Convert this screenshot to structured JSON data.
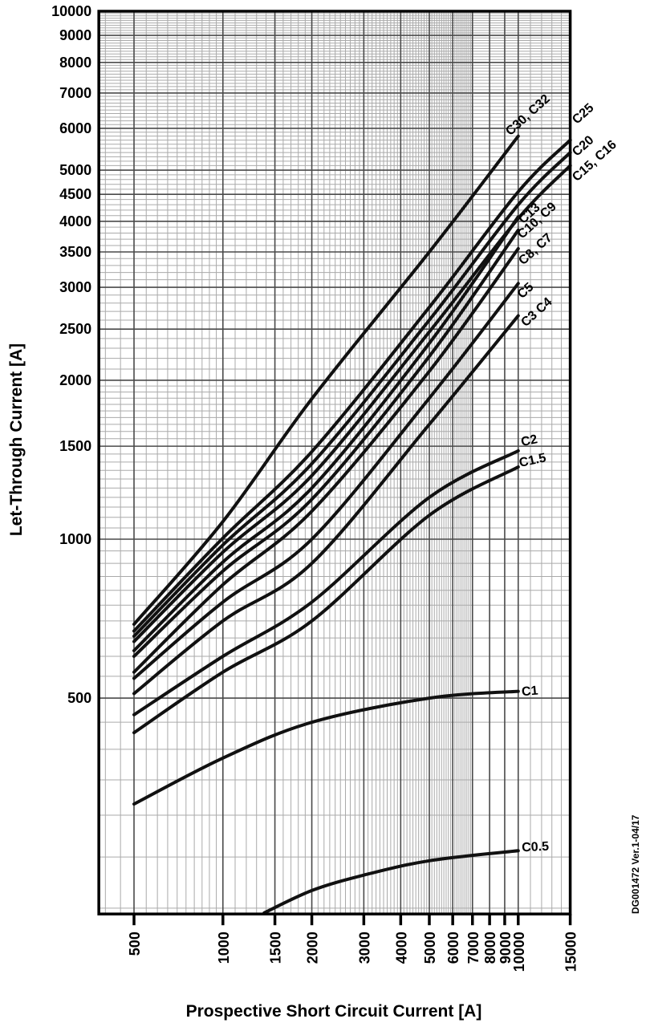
{
  "figure_id": "DG001472  Ver.1-04/17",
  "chart_data": {
    "type": "line",
    "title": "",
    "xlabel": "Prospective Short Circuit Current [A]",
    "ylabel": "Let-Through Current [A]",
    "x_scale": "log",
    "y_scale": "log",
    "xlim": [
      380,
      15000
    ],
    "ylim": [
      195,
      10000
    ],
    "grid": "on (log major + minor, both axes)",
    "legend_position": "labels at right end of each curve",
    "colors": {
      "curve": "#111111",
      "major_grid": "#4a4a4a",
      "minor_grid": "#aaaaaa",
      "border": "#000000",
      "background": "#ffffff"
    },
    "x_ticks": [
      "500",
      "1000",
      "1500",
      "2000",
      "3000",
      "4000",
      "5000",
      "6000",
      "7000",
      "8000",
      "9000",
      "10000",
      "15000"
    ],
    "y_ticks": [
      "10000",
      "9000",
      "8000",
      "7000",
      "6000",
      "5000",
      "4500",
      "4000",
      "3500",
      "3000",
      "2500",
      "2000",
      "1500",
      "1000",
      "500"
    ],
    "series": [
      {
        "name": "C30, C32",
        "points": [
          [
            500,
            690
          ],
          [
            1000,
            1080
          ],
          [
            2000,
            1845
          ],
          [
            5000,
            3500
          ],
          [
            10000,
            5800
          ]
        ],
        "label_anchor": [
          9400,
          5800
        ],
        "label_rotation": -42
      },
      {
        "name": "C25",
        "points": [
          [
            500,
            670
          ],
          [
            1000,
            1005
          ],
          [
            2000,
            1465
          ],
          [
            5000,
            2750
          ],
          [
            10000,
            4550
          ],
          [
            15000,
            5700
          ]
        ],
        "label_anchor": [
          15800,
          6100
        ],
        "label_rotation": -42
      },
      {
        "name": "C20",
        "points": [
          [
            500,
            655
          ],
          [
            1000,
            975
          ],
          [
            2000,
            1390
          ],
          [
            5000,
            2600
          ],
          [
            10000,
            4300
          ],
          [
            15000,
            5400
          ]
        ],
        "label_anchor": [
          15800,
          5300
        ],
        "label_rotation": -42
      },
      {
        "name": "C15, C16",
        "points": [
          [
            500,
            640
          ],
          [
            1000,
            945
          ],
          [
            2000,
            1320
          ],
          [
            5000,
            2470
          ],
          [
            10000,
            4050
          ],
          [
            15000,
            5100
          ]
        ],
        "label_anchor": [
          15800,
          4750
        ],
        "label_rotation": -42
      },
      {
        "name": "C13",
        "points": [
          [
            500,
            615
          ],
          [
            1000,
            905
          ],
          [
            2000,
            1250
          ],
          [
            5000,
            2350
          ],
          [
            10000,
            4080
          ]
        ],
        "label_anchor": [
          10400,
          3950
        ],
        "label_rotation": -42
      },
      {
        "name": "C10, C9",
        "points": [
          [
            500,
            600
          ],
          [
            1000,
            870
          ],
          [
            2000,
            1190
          ],
          [
            5000,
            2220
          ],
          [
            10000,
            3850
          ]
        ],
        "label_anchor": [
          10300,
          3700
        ],
        "label_rotation": -42
      },
      {
        "name": "C8, C7",
        "points": [
          [
            500,
            560
          ],
          [
            1000,
            820
          ],
          [
            2000,
            1130
          ],
          [
            5000,
            2080
          ],
          [
            10000,
            3550
          ]
        ],
        "label_anchor": [
          10400,
          3300
        ],
        "label_rotation": -42
      },
      {
        "name": "C5",
        "points": [
          [
            500,
            545
          ],
          [
            1000,
            760
          ],
          [
            2000,
            1000
          ],
          [
            5000,
            1850
          ],
          [
            10000,
            3050
          ]
        ],
        "label_anchor": [
          10300,
          2850
        ],
        "label_rotation": -42
      },
      {
        "name": "C3 C4",
        "points": [
          [
            500,
            510
          ],
          [
            1000,
            700
          ],
          [
            2000,
            900
          ],
          [
            5000,
            1650
          ],
          [
            10000,
            2650
          ]
        ],
        "label_anchor": [
          10600,
          2520
        ],
        "label_rotation": -42
      },
      {
        "name": "C2",
        "points": [
          [
            500,
            465
          ],
          [
            1000,
            600
          ],
          [
            2000,
            760
          ],
          [
            5000,
            1200
          ],
          [
            10000,
            1470
          ]
        ],
        "label_anchor": [
          10300,
          1500
        ],
        "label_rotation": -12
      },
      {
        "name": "C1.5",
        "points": [
          [
            500,
            430
          ],
          [
            1000,
            560
          ],
          [
            2000,
            700
          ],
          [
            5000,
            1110
          ],
          [
            10000,
            1370
          ]
        ],
        "label_anchor": [
          10150,
          1370
        ],
        "label_rotation": -12
      },
      {
        "name": "C1",
        "points": [
          [
            500,
            315
          ],
          [
            1000,
            385
          ],
          [
            2000,
            450
          ],
          [
            5000,
            500
          ],
          [
            10000,
            515
          ]
        ],
        "label_anchor": [
          10300,
          505
        ],
        "label_rotation": -5
      },
      {
        "name": "C0.5",
        "points": [
          [
            1380,
            196
          ],
          [
            2000,
            216
          ],
          [
            3000,
            231
          ],
          [
            5000,
            246
          ],
          [
            10000,
            257
          ]
        ],
        "label_anchor": [
          10300,
          256
        ],
        "label_rotation": -3
      }
    ]
  }
}
